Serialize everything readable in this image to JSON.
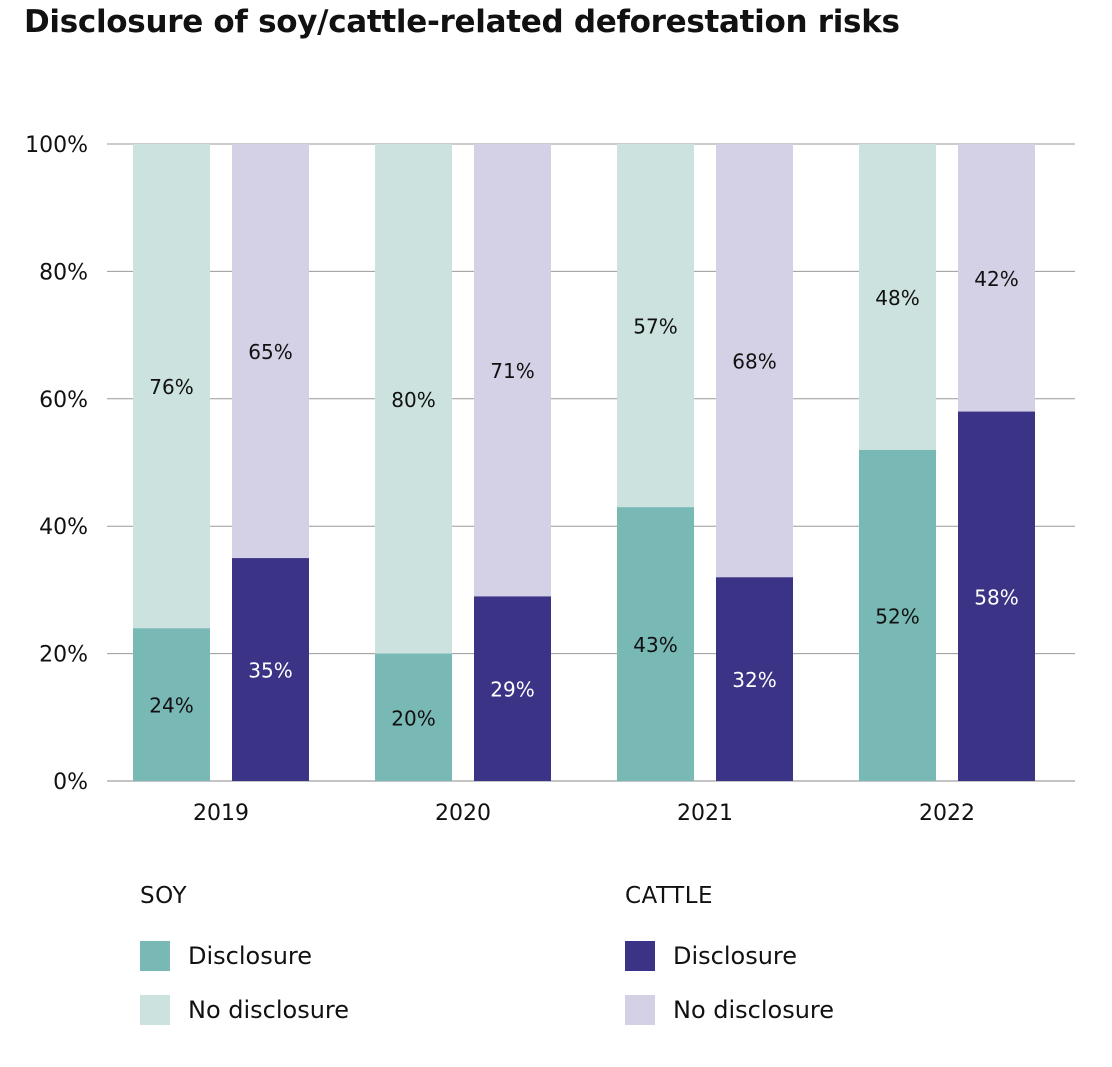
{
  "chart_data": {
    "type": "bar",
    "title": "Disclosure of soy/cattle-related deforestation risks",
    "categories": [
      "2019",
      "2020",
      "2021",
      "2022"
    ],
    "y_ticks": [
      "0%",
      "20%",
      "40%",
      "60%",
      "80%",
      "100%"
    ],
    "ylim": [
      0,
      100
    ],
    "grid": true,
    "stacked": true,
    "series": [
      {
        "group": "SOY",
        "name": "Disclosure",
        "values": [
          24,
          20,
          43,
          52
        ],
        "labels": [
          "24%",
          "20%",
          "43%",
          "52%"
        ],
        "color": "#78b8b5",
        "label_color": "#111111"
      },
      {
        "group": "SOY",
        "name": "No disclosure",
        "values": [
          76,
          80,
          57,
          48
        ],
        "labels": [
          "76%",
          "80%",
          "57%",
          "48%"
        ],
        "color": "#cce2df",
        "label_color": "#111111"
      },
      {
        "group": "CATTLE",
        "name": "Disclosure",
        "values": [
          35,
          29,
          32,
          58
        ],
        "labels": [
          "35%",
          "29%",
          "32%",
          "58%"
        ],
        "color": "#3b3486",
        "label_color": "#ffffff"
      },
      {
        "group": "CATTLE",
        "name": "No disclosure",
        "values": [
          65,
          71,
          68,
          42
        ],
        "labels": [
          "65%",
          "71%",
          "68%",
          "42%"
        ],
        "color": "#d4d0e5",
        "label_color": "#111111"
      }
    ],
    "legend": {
      "placement": "bottom",
      "groups": [
        {
          "title": "SOY",
          "items": [
            {
              "label": "Disclosure",
              "color": "#78b8b5"
            },
            {
              "label": "No disclosure",
              "color": "#cce2df"
            }
          ]
        },
        {
          "title": "CATTLE",
          "items": [
            {
              "label": "Disclosure",
              "color": "#3b3486"
            },
            {
              "label": "No disclosure",
              "color": "#d4d0e5"
            }
          ]
        }
      ]
    }
  }
}
